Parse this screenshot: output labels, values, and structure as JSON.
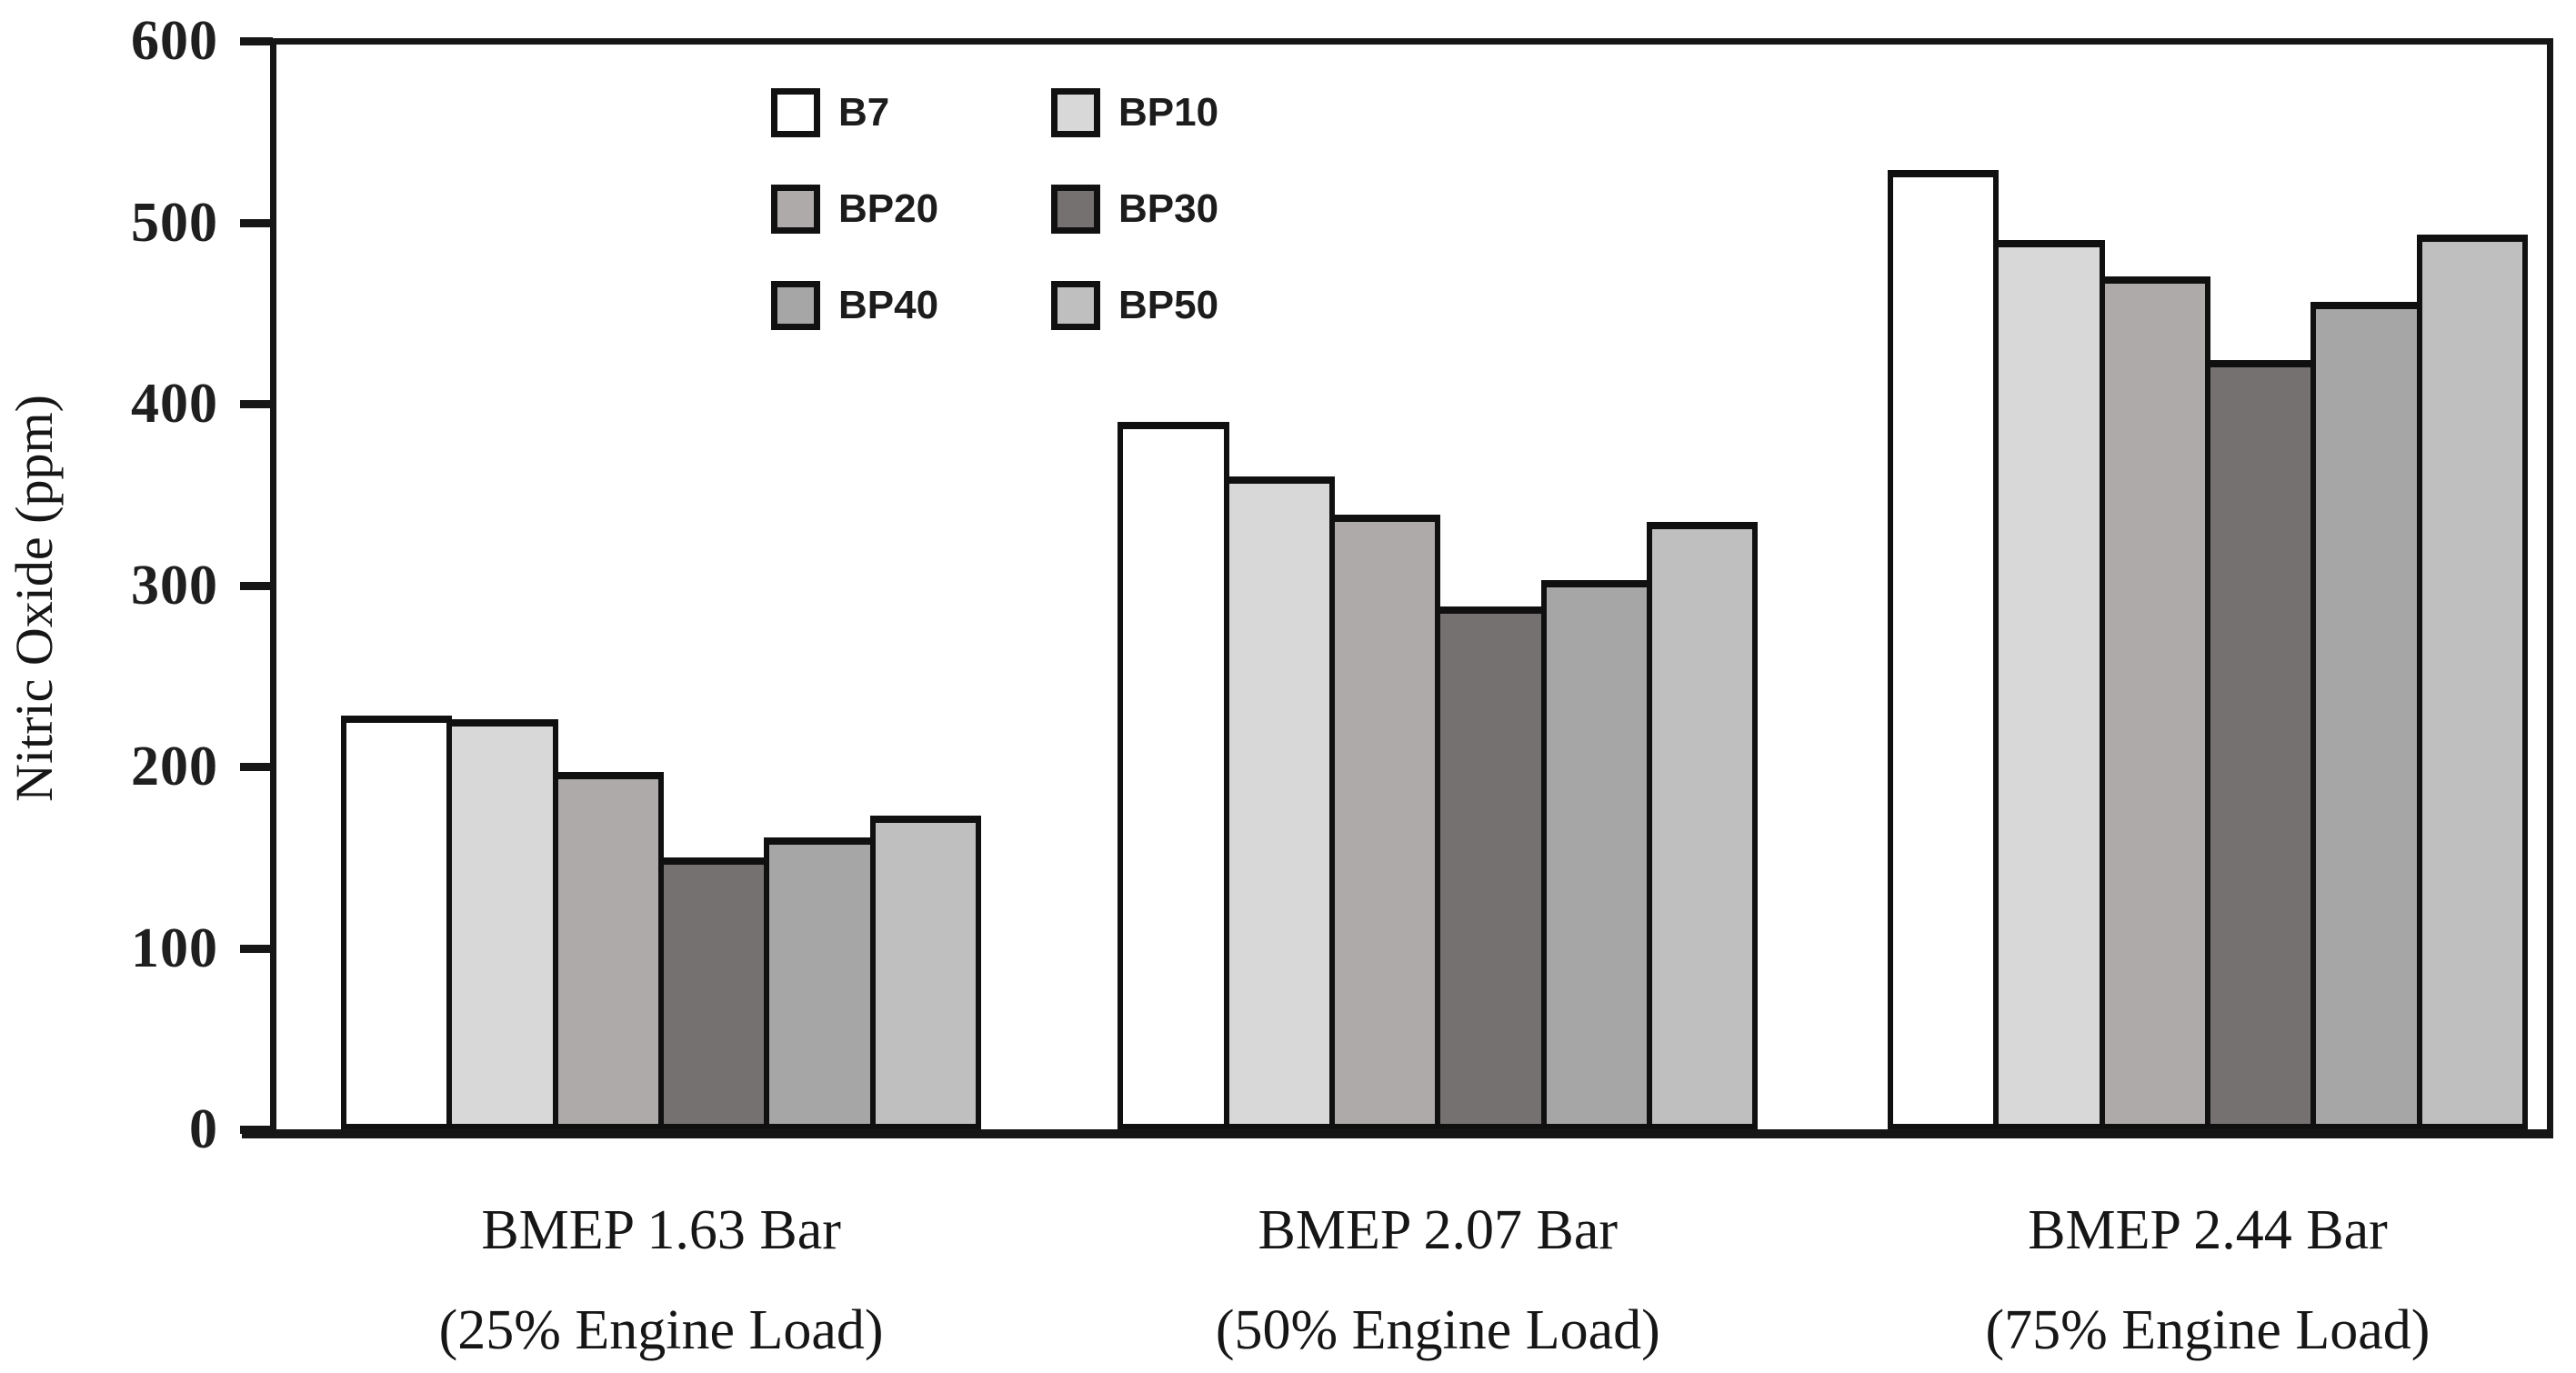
{
  "chart_data": {
    "type": "bar",
    "title": "",
    "xlabel": "",
    "ylabel": "Nitric Oxide (ppm)",
    "ylim": [
      0,
      600
    ],
    "yticks": [
      0,
      100,
      200,
      300,
      400,
      500,
      600
    ],
    "grid": false,
    "legend_position": "top-left-inside",
    "bar_outline_color": "#101010",
    "axis_color": "#161616",
    "categories": [
      {
        "line1": "BMEP 1.63 Bar",
        "line2": "(25% Engine Load)"
      },
      {
        "line1": "BMEP 2.07 Bar",
        "line2": "(50% Engine Load)"
      },
      {
        "line1": "BMEP 2.44 Bar",
        "line2": "(75% Engine Load)"
      }
    ],
    "series": [
      {
        "name": "B7",
        "color": "#FFFFFF",
        "values": [
          228,
          390,
          529
        ]
      },
      {
        "name": "BP10",
        "color": "#D8D8D8",
        "values": [
          226,
          360,
          490
        ]
      },
      {
        "name": "BP20",
        "color": "#AEAAAA",
        "values": [
          197,
          339,
          470
        ]
      },
      {
        "name": "BP30",
        "color": "#767171",
        "values": [
          150,
          288,
          424
        ]
      },
      {
        "name": "BP40",
        "color": "#A6A6A6",
        "values": [
          161,
          303,
          456
        ]
      },
      {
        "name": "BP50",
        "color": "#BFBFBF",
        "values": [
          173,
          335,
          493
        ]
      }
    ]
  }
}
